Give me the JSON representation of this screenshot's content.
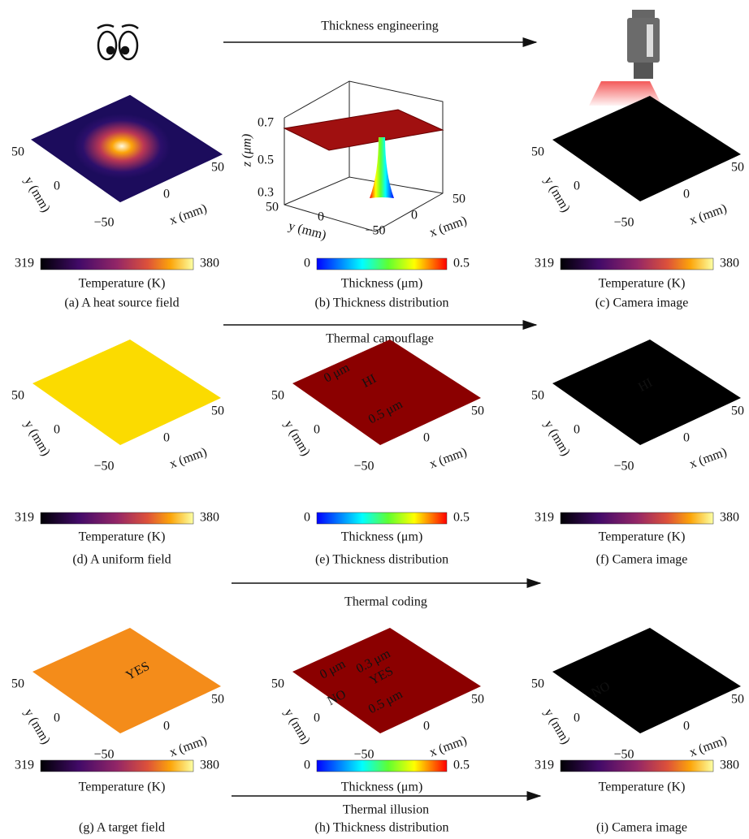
{
  "arrows": [
    {
      "label": "Thickness engineering"
    },
    {
      "label": "Thermal camouflage"
    },
    {
      "label": "Thermal coding"
    },
    {
      "label": "Thermal illusion"
    }
  ],
  "panels": [
    {
      "caption": "(a) A heat source field",
      "colorbar": {
        "min": "319",
        "max": "380",
        "label": "Temperature (K)"
      },
      "axes": {
        "y_ticks": [
          "50",
          "0",
          "−50"
        ],
        "x_ticks": [
          "0",
          "50"
        ],
        "y_label": "y (mm)",
        "x_label": "x (mm)"
      },
      "annotations": []
    },
    {
      "caption": "(b) Thickness distribution",
      "colorbar": {
        "min": "0",
        "max": "0.5",
        "label": "Thickness (μm)"
      },
      "axes": {
        "z_ticks": [
          "0.7",
          "0.5",
          "0.3"
        ],
        "z_label": "z (μm)",
        "y_ticks": [
          "50",
          "0",
          "−50"
        ],
        "x_ticks": [
          "0",
          "50"
        ],
        "y_label": "y (mm)",
        "x_label": "x (mm)"
      },
      "annotations": []
    },
    {
      "caption": "(c) Camera image",
      "colorbar": {
        "min": "319",
        "max": "380",
        "label": "Temperature (K)"
      },
      "axes": {
        "y_ticks": [
          "50",
          "0",
          "−50"
        ],
        "x_ticks": [
          "0",
          "50"
        ],
        "y_label": "y (mm)",
        "x_label": "x (mm)"
      },
      "annotations": []
    },
    {
      "caption": "(d) A uniform field",
      "colorbar": {
        "min": "319",
        "max": "380",
        "label": "Temperature (K)"
      },
      "axes": {
        "y_ticks": [
          "50",
          "0",
          "−50"
        ],
        "x_ticks": [
          "0",
          "50"
        ],
        "y_label": "y (mm)",
        "x_label": "x (mm)"
      },
      "annotations": []
    },
    {
      "caption": "(e) Thickness distribution",
      "colorbar": {
        "min": "0",
        "max": "0.5",
        "label": "Thickness (μm)"
      },
      "axes": {
        "y_ticks": [
          "50",
          "0",
          "−50"
        ],
        "x_ticks": [
          "0",
          "50"
        ],
        "y_label": "y (mm)",
        "x_label": "x (mm)"
      },
      "annotations": [
        "0 μm",
        "HI",
        "0.5 μm"
      ]
    },
    {
      "caption": "(f) Camera image",
      "colorbar": {
        "min": "319",
        "max": "380",
        "label": "Temperature (K)"
      },
      "axes": {
        "y_ticks": [
          "50",
          "0",
          "−50"
        ],
        "x_ticks": [
          "0",
          "50"
        ],
        "y_label": "y (mm)",
        "x_label": "x (mm)"
      },
      "annotations": [
        "HI"
      ]
    },
    {
      "caption": "(g) A target field",
      "colorbar": {
        "min": "319",
        "max": "380",
        "label": "Temperature (K)"
      },
      "axes": {
        "y_ticks": [
          "50",
          "0",
          "−50"
        ],
        "x_ticks": [
          "0",
          "50"
        ],
        "y_label": "y (mm)",
        "x_label": "x (mm)"
      },
      "annotations": [
        "YES"
      ]
    },
    {
      "caption": "(h) Thickness distribution",
      "colorbar": {
        "min": "0",
        "max": "0.5",
        "label": "Thickness (μm)"
      },
      "axes": {
        "y_ticks": [
          "50",
          "0",
          "−50"
        ],
        "x_ticks": [
          "0",
          "50"
        ],
        "y_label": "y (mm)",
        "x_label": "x (mm)"
      },
      "annotations": [
        "0 μm",
        "0.3 μm",
        "NO",
        "YES",
        "0.5 μm"
      ]
    },
    {
      "caption": "(i) Camera image",
      "colorbar": {
        "min": "319",
        "max": "380",
        "label": "Temperature (K)"
      },
      "axes": {
        "y_ticks": [
          "50",
          "0",
          "−50"
        ],
        "x_ticks": [
          "0",
          "50"
        ],
        "y_label": "y (mm)",
        "x_label": "x (mm)"
      },
      "annotations": [
        "NO"
      ]
    }
  ]
}
